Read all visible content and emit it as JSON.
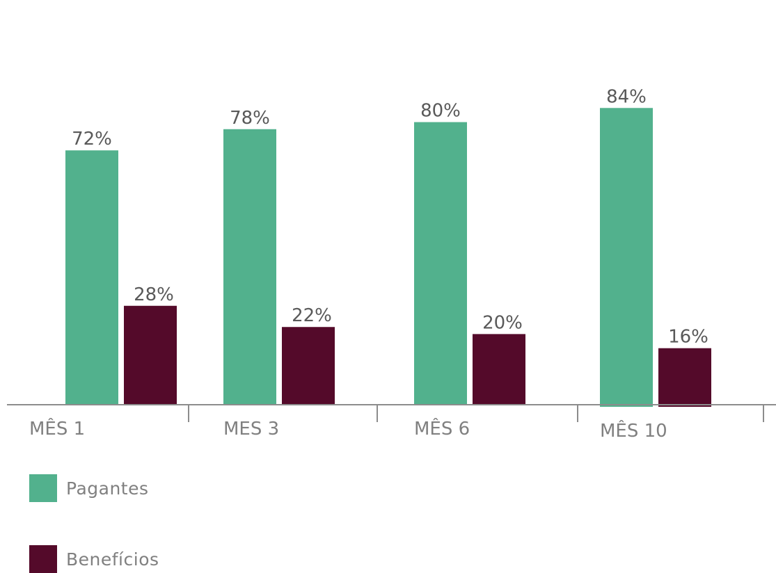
{
  "chart_data": {
    "type": "bar",
    "categories": [
      "MÊS 1",
      "MES 3",
      "MÊS 6",
      "MÊS 10"
    ],
    "series": [
      {
        "name": "Pagantes",
        "values": [
          72,
          78,
          80,
          84
        ],
        "labels": [
          "72%",
          "78%",
          "80%",
          "84%"
        ],
        "color": "#52B18D"
      },
      {
        "name": "Benefícios",
        "values": [
          28,
          22,
          20,
          16
        ],
        "labels": [
          "28%",
          "22%",
          "20%",
          "16%"
        ],
        "color": "#540A2A"
      }
    ],
    "ylim": [
      0,
      90
    ],
    "grid": false,
    "legend_position": "bottom-left"
  }
}
